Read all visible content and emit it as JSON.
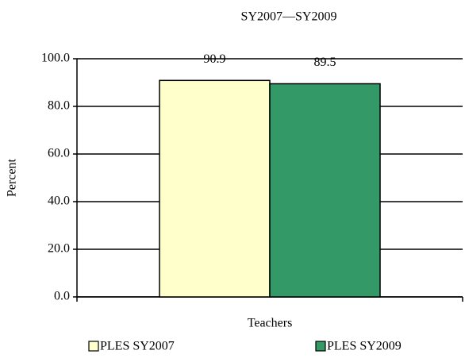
{
  "chart_data": {
    "type": "bar",
    "title": "SY2007—SY2009",
    "y_label": "Percent",
    "x_label": "Teachers",
    "categories": [
      "Teachers"
    ],
    "series": [
      {
        "name": "PLES SY2007",
        "color": "#ffffcc",
        "values": [
          90.9
        ]
      },
      {
        "name": "PLES SY2009",
        "color": "#339966",
        "values": [
          89.5
        ]
      }
    ],
    "ylim": [
      0,
      100
    ],
    "yticks": [
      {
        "value": 0,
        "label": "0.0"
      },
      {
        "value": 20,
        "label": "20.0"
      },
      {
        "value": 40,
        "label": "40.0"
      },
      {
        "value": 60,
        "label": "60.0"
      },
      {
        "value": 80,
        "label": "80.0"
      },
      {
        "value": 100,
        "label": "100.0"
      }
    ],
    "grid": true,
    "legend": "bottom"
  }
}
